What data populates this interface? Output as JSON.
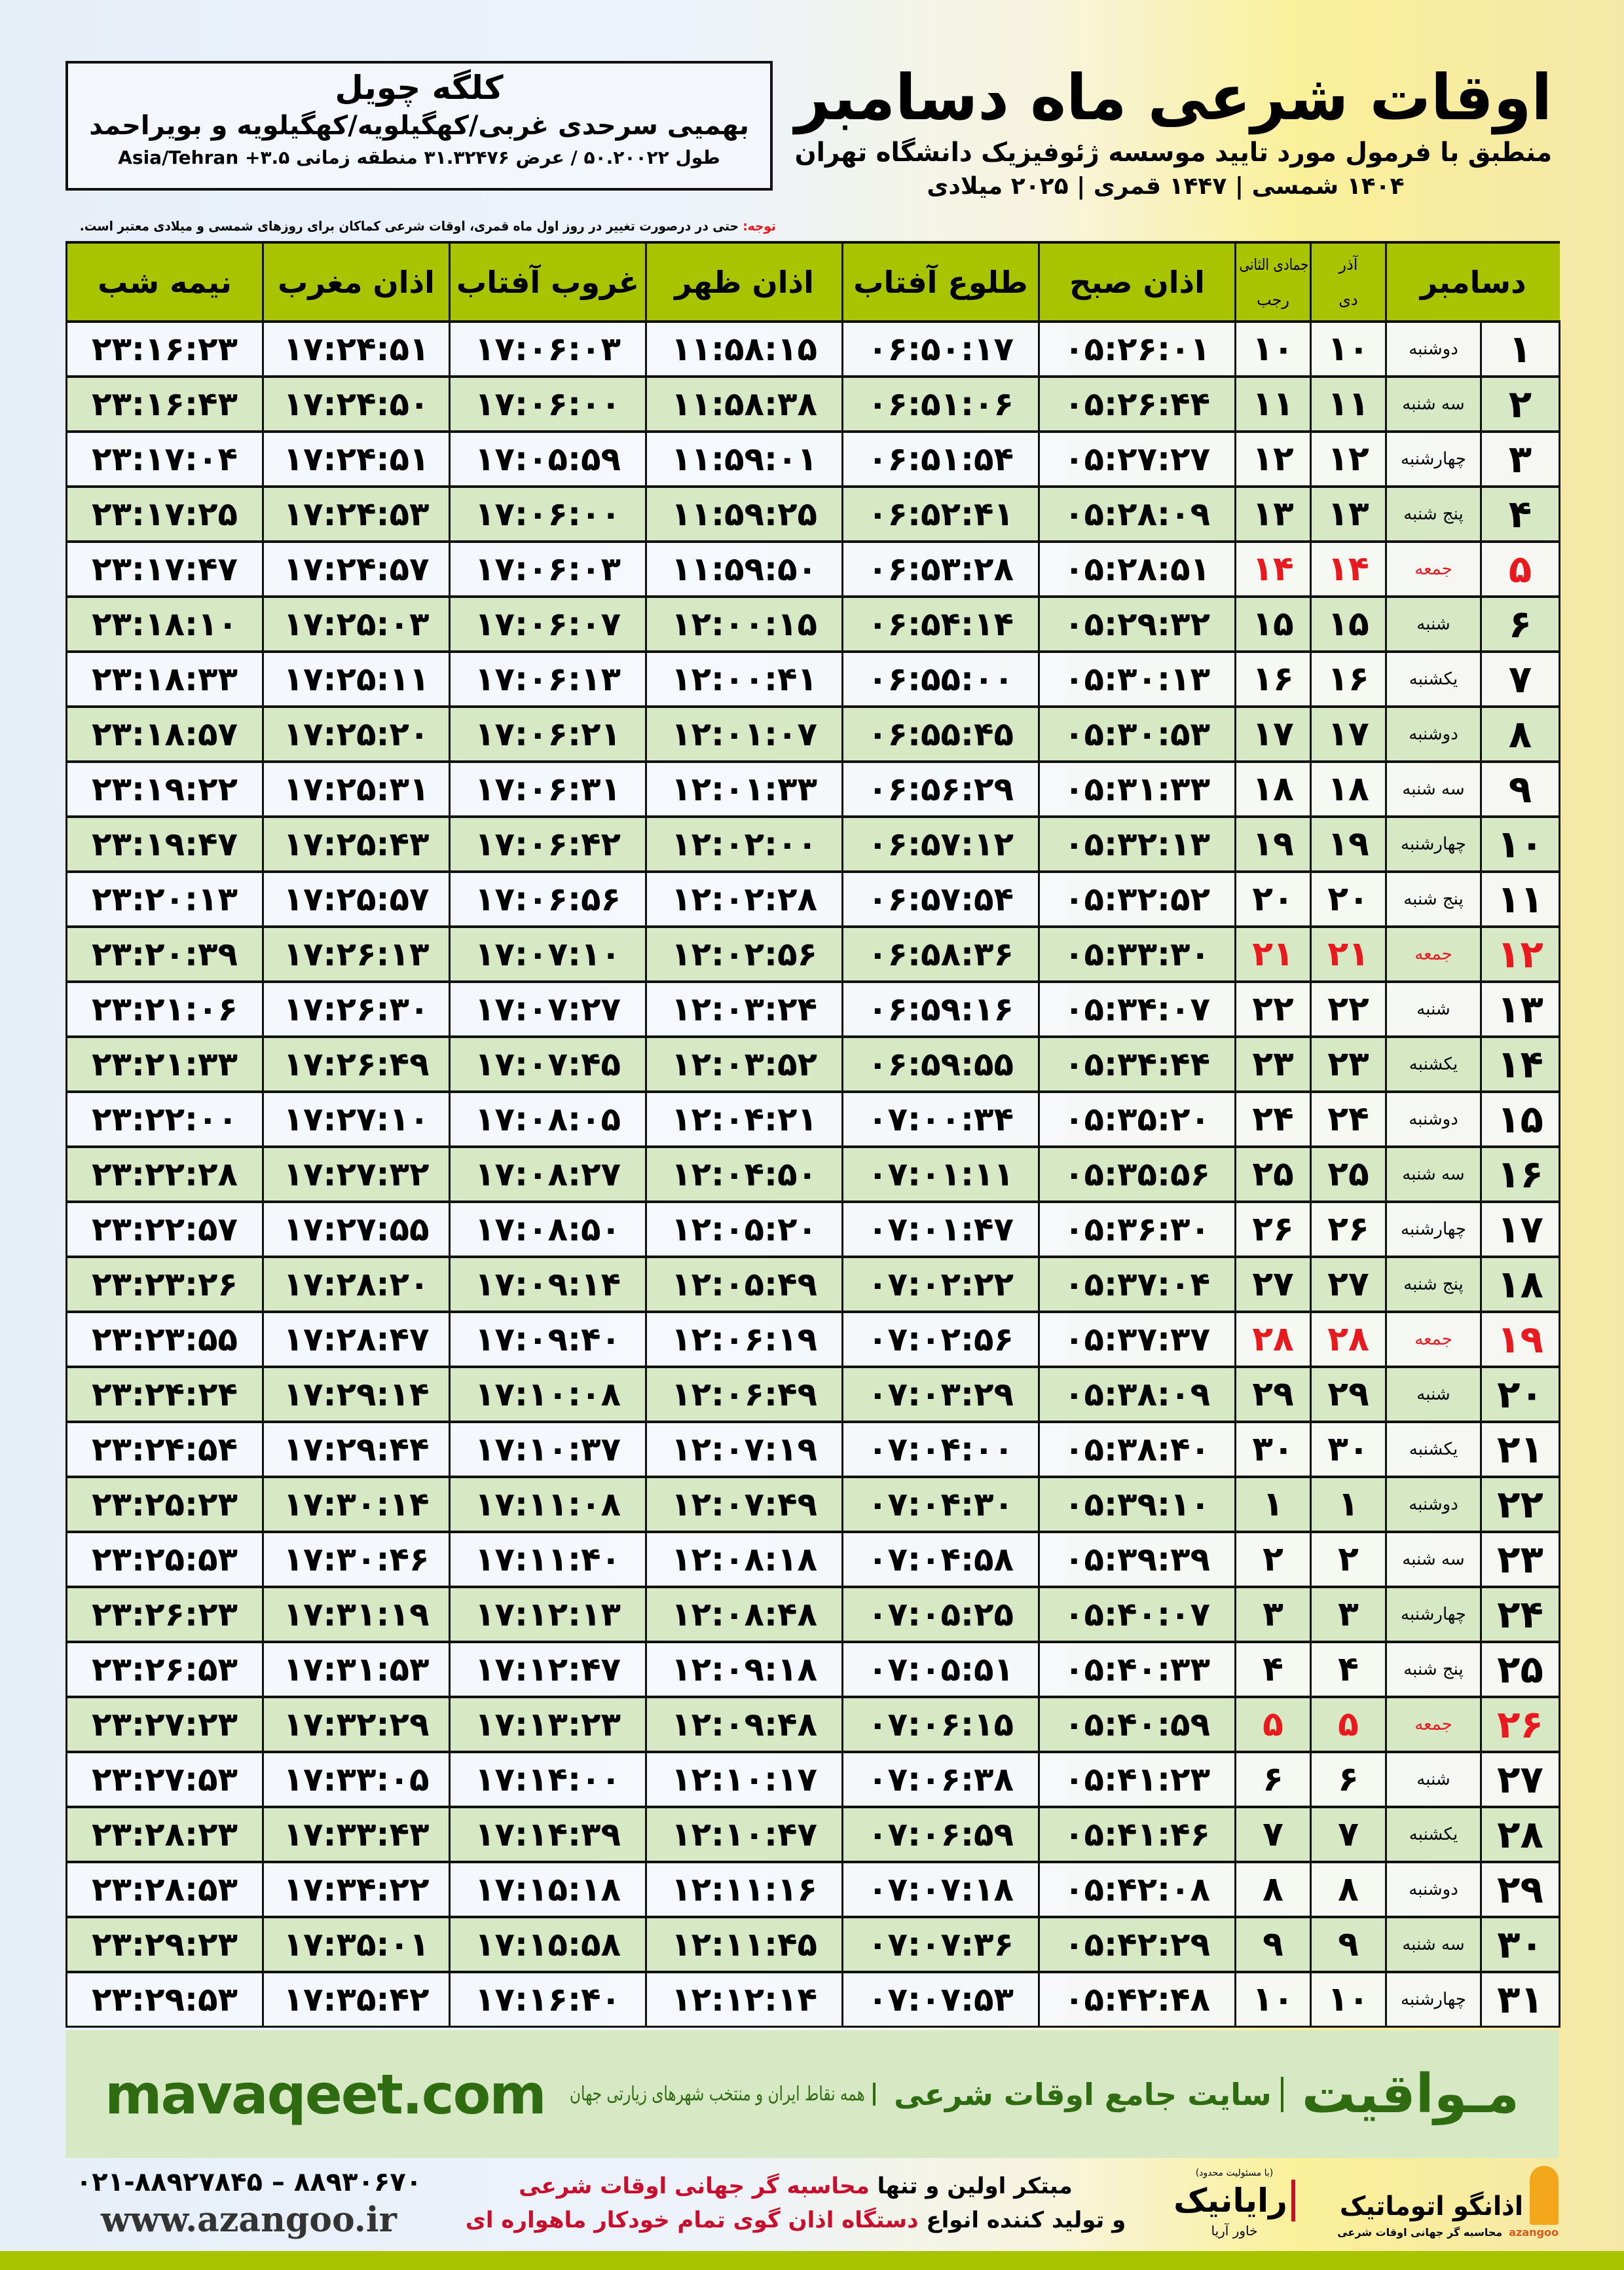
{
  "info_box": {
    "city": "کلگه چویل",
    "region": "بهمیی سرحدی غربی/کهگیلویه/کهگیلویه و بویراحمد",
    "coords": "طول ۵۰.۲۰۰۲۲ / عرض ۳۱.۳۲۴۷۶ منطقه زمانی ۳.۵+ Asia/Tehran"
  },
  "header": {
    "title": "اوقات شرعی ماه دسامبر",
    "subtitle": "منطبق با فرمول مورد تایید موسسه ژئوفیزیک دانشگاه تهران",
    "dates": "۱۴۰۴ شمسی | ۱۴۴۷ قمری | ۲۰۲۵ میلادی"
  },
  "note": {
    "label": "توجه:",
    "text": " حتی در درصورت تغییر در روز اول ماه قمری، اوقات شرعی کماکان برای روزهای شمسی و میلادی معتبر است."
  },
  "colors": {
    "header_green": "#a8c300",
    "row_green": "#d7e8c4",
    "holiday_red": "#e8191f",
    "brand_green": "#2f6b10"
  },
  "table": {
    "headers": {
      "month": "دسامبر",
      "shamsi_top": "آذر",
      "shamsi_bottom": "دی",
      "qamari_top": "جمادی الثانی",
      "qamari_bottom": "رجب",
      "fajr": "اذان صبح",
      "sunrise": "طلوع آفتاب",
      "dhuhr": "اذان ظهر",
      "sunset": "غروب آفتاب",
      "maghrib": "اذان مغرب",
      "midnight": "نیمه شب"
    },
    "rows": [
      [
        "۱",
        "دوشنبه",
        "۱۰",
        "۱۰",
        "۰۵:۲۶:۰۱",
        "۰۶:۵۰:۱۷",
        "۱۱:۵۸:۱۵",
        "۱۷:۰۶:۰۳",
        "۱۷:۲۴:۵۱",
        "۲۳:۱۶:۲۳"
      ],
      [
        "۲",
        "سه شنبه",
        "۱۱",
        "۱۱",
        "۰۵:۲۶:۴۴",
        "۰۶:۵۱:۰۶",
        "۱۱:۵۸:۳۸",
        "۱۷:۰۶:۰۰",
        "۱۷:۲۴:۵۰",
        "۲۳:۱۶:۴۳"
      ],
      [
        "۳",
        "چهارشنبه",
        "۱۲",
        "۱۲",
        "۰۵:۲۷:۲۷",
        "۰۶:۵۱:۵۴",
        "۱۱:۵۹:۰۱",
        "۱۷:۰۵:۵۹",
        "۱۷:۲۴:۵۱",
        "۲۳:۱۷:۰۴"
      ],
      [
        "۴",
        "پنج شنبه",
        "۱۳",
        "۱۳",
        "۰۵:۲۸:۰۹",
        "۰۶:۵۲:۴۱",
        "۱۱:۵۹:۲۵",
        "۱۷:۰۶:۰۰",
        "۱۷:۲۴:۵۳",
        "۲۳:۱۷:۲۵"
      ],
      [
        "۵",
        "جمعه",
        "۱۴",
        "۱۴",
        "۰۵:۲۸:۵۱",
        "۰۶:۵۳:۲۸",
        "۱۱:۵۹:۵۰",
        "۱۷:۰۶:۰۳",
        "۱۷:۲۴:۵۷",
        "۲۳:۱۷:۴۷"
      ],
      [
        "۶",
        "شنبه",
        "۱۵",
        "۱۵",
        "۰۵:۲۹:۳۲",
        "۰۶:۵۴:۱۴",
        "۱۲:۰۰:۱۵",
        "۱۷:۰۶:۰۷",
        "۱۷:۲۵:۰۳",
        "۲۳:۱۸:۱۰"
      ],
      [
        "۷",
        "یکشنبه",
        "۱۶",
        "۱۶",
        "۰۵:۳۰:۱۳",
        "۰۶:۵۵:۰۰",
        "۱۲:۰۰:۴۱",
        "۱۷:۰۶:۱۳",
        "۱۷:۲۵:۱۱",
        "۲۳:۱۸:۳۳"
      ],
      [
        "۸",
        "دوشنبه",
        "۱۷",
        "۱۷",
        "۰۵:۳۰:۵۳",
        "۰۶:۵۵:۴۵",
        "۱۲:۰۱:۰۷",
        "۱۷:۰۶:۲۱",
        "۱۷:۲۵:۲۰",
        "۲۳:۱۸:۵۷"
      ],
      [
        "۹",
        "سه شنبه",
        "۱۸",
        "۱۸",
        "۰۵:۳۱:۳۳",
        "۰۶:۵۶:۲۹",
        "۱۲:۰۱:۳۳",
        "۱۷:۰۶:۳۱",
        "۱۷:۲۵:۳۱",
        "۲۳:۱۹:۲۲"
      ],
      [
        "۱۰",
        "چهارشنبه",
        "۱۹",
        "۱۹",
        "۰۵:۳۲:۱۳",
        "۰۶:۵۷:۱۲",
        "۱۲:۰۲:۰۰",
        "۱۷:۰۶:۴۲",
        "۱۷:۲۵:۴۳",
        "۲۳:۱۹:۴۷"
      ],
      [
        "۱۱",
        "پنج شنبه",
        "۲۰",
        "۲۰",
        "۰۵:۳۲:۵۲",
        "۰۶:۵۷:۵۴",
        "۱۲:۰۲:۲۸",
        "۱۷:۰۶:۵۶",
        "۱۷:۲۵:۵۷",
        "۲۳:۲۰:۱۳"
      ],
      [
        "۱۲",
        "جمعه",
        "۲۱",
        "۲۱",
        "۰۵:۳۳:۳۰",
        "۰۶:۵۸:۳۶",
        "۱۲:۰۲:۵۶",
        "۱۷:۰۷:۱۰",
        "۱۷:۲۶:۱۳",
        "۲۳:۲۰:۳۹"
      ],
      [
        "۱۳",
        "شنبه",
        "۲۲",
        "۲۲",
        "۰۵:۳۴:۰۷",
        "۰۶:۵۹:۱۶",
        "۱۲:۰۳:۲۴",
        "۱۷:۰۷:۲۷",
        "۱۷:۲۶:۳۰",
        "۲۳:۲۱:۰۶"
      ],
      [
        "۱۴",
        "یکشنبه",
        "۲۳",
        "۲۳",
        "۰۵:۳۴:۴۴",
        "۰۶:۵۹:۵۵",
        "۱۲:۰۳:۵۲",
        "۱۷:۰۷:۴۵",
        "۱۷:۲۶:۴۹",
        "۲۳:۲۱:۳۳"
      ],
      [
        "۱۵",
        "دوشنبه",
        "۲۴",
        "۲۴",
        "۰۵:۳۵:۲۰",
        "۰۷:۰۰:۳۴",
        "۱۲:۰۴:۲۱",
        "۱۷:۰۸:۰۵",
        "۱۷:۲۷:۱۰",
        "۲۳:۲۲:۰۰"
      ],
      [
        "۱۶",
        "سه شنبه",
        "۲۵",
        "۲۵",
        "۰۵:۳۵:۵۶",
        "۰۷:۰۱:۱۱",
        "۱۲:۰۴:۵۰",
        "۱۷:۰۸:۲۷",
        "۱۷:۲۷:۳۲",
        "۲۳:۲۲:۲۸"
      ],
      [
        "۱۷",
        "چهارشنبه",
        "۲۶",
        "۲۶",
        "۰۵:۳۶:۳۰",
        "۰۷:۰۱:۴۷",
        "۱۲:۰۵:۲۰",
        "۱۷:۰۸:۵۰",
        "۱۷:۲۷:۵۵",
        "۲۳:۲۲:۵۷"
      ],
      [
        "۱۸",
        "پنج شنبه",
        "۲۷",
        "۲۷",
        "۰۵:۳۷:۰۴",
        "۰۷:۰۲:۲۲",
        "۱۲:۰۵:۴۹",
        "۱۷:۰۹:۱۴",
        "۱۷:۲۸:۲۰",
        "۲۳:۲۳:۲۶"
      ],
      [
        "۱۹",
        "جمعه",
        "۲۸",
        "۲۸",
        "۰۵:۳۷:۳۷",
        "۰۷:۰۲:۵۶",
        "۱۲:۰۶:۱۹",
        "۱۷:۰۹:۴۰",
        "۱۷:۲۸:۴۷",
        "۲۳:۲۳:۵۵"
      ],
      [
        "۲۰",
        "شنبه",
        "۲۹",
        "۲۹",
        "۰۵:۳۸:۰۹",
        "۰۷:۰۳:۲۹",
        "۱۲:۰۶:۴۹",
        "۱۷:۱۰:۰۸",
        "۱۷:۲۹:۱۴",
        "۲۳:۲۴:۲۴"
      ],
      [
        "۲۱",
        "یکشنبه",
        "۳۰",
        "۳۰",
        "۰۵:۳۸:۴۰",
        "۰۷:۰۴:۰۰",
        "۱۲:۰۷:۱۹",
        "۱۷:۱۰:۳۷",
        "۱۷:۲۹:۴۴",
        "۲۳:۲۴:۵۴"
      ],
      [
        "۲۲",
        "دوشنبه",
        "۱",
        "۱",
        "۰۵:۳۹:۱۰",
        "۰۷:۰۴:۳۰",
        "۱۲:۰۷:۴۹",
        "۱۷:۱۱:۰۸",
        "۱۷:۳۰:۱۴",
        "۲۳:۲۵:۲۳"
      ],
      [
        "۲۳",
        "سه شنبه",
        "۲",
        "۲",
        "۰۵:۳۹:۳۹",
        "۰۷:۰۴:۵۸",
        "۱۲:۰۸:۱۸",
        "۱۷:۱۱:۴۰",
        "۱۷:۳۰:۴۶",
        "۲۳:۲۵:۵۳"
      ],
      [
        "۲۴",
        "چهارشنبه",
        "۳",
        "۳",
        "۰۵:۴۰:۰۷",
        "۰۷:۰۵:۲۵",
        "۱۲:۰۸:۴۸",
        "۱۷:۱۲:۱۳",
        "۱۷:۳۱:۱۹",
        "۲۳:۲۶:۲۳"
      ],
      [
        "۲۵",
        "پنج شنبه",
        "۴",
        "۴",
        "۰۵:۴۰:۳۳",
        "۰۷:۰۵:۵۱",
        "۱۲:۰۹:۱۸",
        "۱۷:۱۲:۴۷",
        "۱۷:۳۱:۵۳",
        "۲۳:۲۶:۵۳"
      ],
      [
        "۲۶",
        "جمعه",
        "۵",
        "۵",
        "۰۵:۴۰:۵۹",
        "۰۷:۰۶:۱۵",
        "۱۲:۰۹:۴۸",
        "۱۷:۱۳:۲۳",
        "۱۷:۳۲:۲۹",
        "۲۳:۲۷:۲۳"
      ],
      [
        "۲۷",
        "شنبه",
        "۶",
        "۶",
        "۰۵:۴۱:۲۳",
        "۰۷:۰۶:۳۸",
        "۱۲:۱۰:۱۷",
        "۱۷:۱۴:۰۰",
        "۱۷:۳۳:۰۵",
        "۲۳:۲۷:۵۳"
      ],
      [
        "۲۸",
        "یکشنبه",
        "۷",
        "۷",
        "۰۵:۴۱:۴۶",
        "۰۷:۰۶:۵۹",
        "۱۲:۱۰:۴۷",
        "۱۷:۱۴:۳۹",
        "۱۷:۳۳:۴۳",
        "۲۳:۲۸:۲۳"
      ],
      [
        "۲۹",
        "دوشنبه",
        "۸",
        "۸",
        "۰۵:۴۲:۰۸",
        "۰۷:۰۷:۱۸",
        "۱۲:۱۱:۱۶",
        "۱۷:۱۵:۱۸",
        "۱۷:۳۴:۲۲",
        "۲۳:۲۸:۵۳"
      ],
      [
        "۳۰",
        "سه شنبه",
        "۹",
        "۹",
        "۰۵:۴۲:۲۹",
        "۰۷:۰۷:۳۶",
        "۱۲:۱۱:۴۵",
        "۱۷:۱۵:۵۸",
        "۱۷:۳۵:۰۱",
        "۲۳:۲۹:۲۳"
      ],
      [
        "۳۱",
        "چهارشنبه",
        "۱۰",
        "۱۰",
        "۰۵:۴۲:۴۸",
        "۰۷:۰۷:۵۳",
        "۱۲:۱۲:۱۴",
        "۱۷:۱۶:۴۰",
        "۱۷:۳۵:۴۲",
        "۲۳:۲۹:۵۳"
      ]
    ]
  },
  "banner": {
    "brand": "مـواقیت",
    "site": "سایت جامع اوقات شرعی",
    "tagline": "همه نقاط ایران و منتخب شهرهای زیارتی جهان",
    "url": "mavaqeet.com"
  },
  "footer": {
    "phones": "۰۲۱-۸۸۹۲۷۸۴۵ – ۸۸۹۳۰۶۷۰",
    "website": "www.azangoo.ir",
    "promo_line1_a": "مبتکر اولین و تنها ",
    "promo_line1_b": "محاسبه گر جهانی اوقات شرعی",
    "promo_line2_a": "و تولید کننده انواع ",
    "promo_line2_b": "دستگاه اذان گوی تمام خودکار ماهواره ای",
    "rayanik_note": "(با مسئولیت محدود)",
    "rayanik": "رایانیک",
    "rayanik_sub": "خاور آریا",
    "azangoo_name": "اذانگو اتوماتیک",
    "azangoo_sub": "محاسبه گر جهانی اوقات شرعی",
    "azangoo_latin": "azangoo"
  }
}
